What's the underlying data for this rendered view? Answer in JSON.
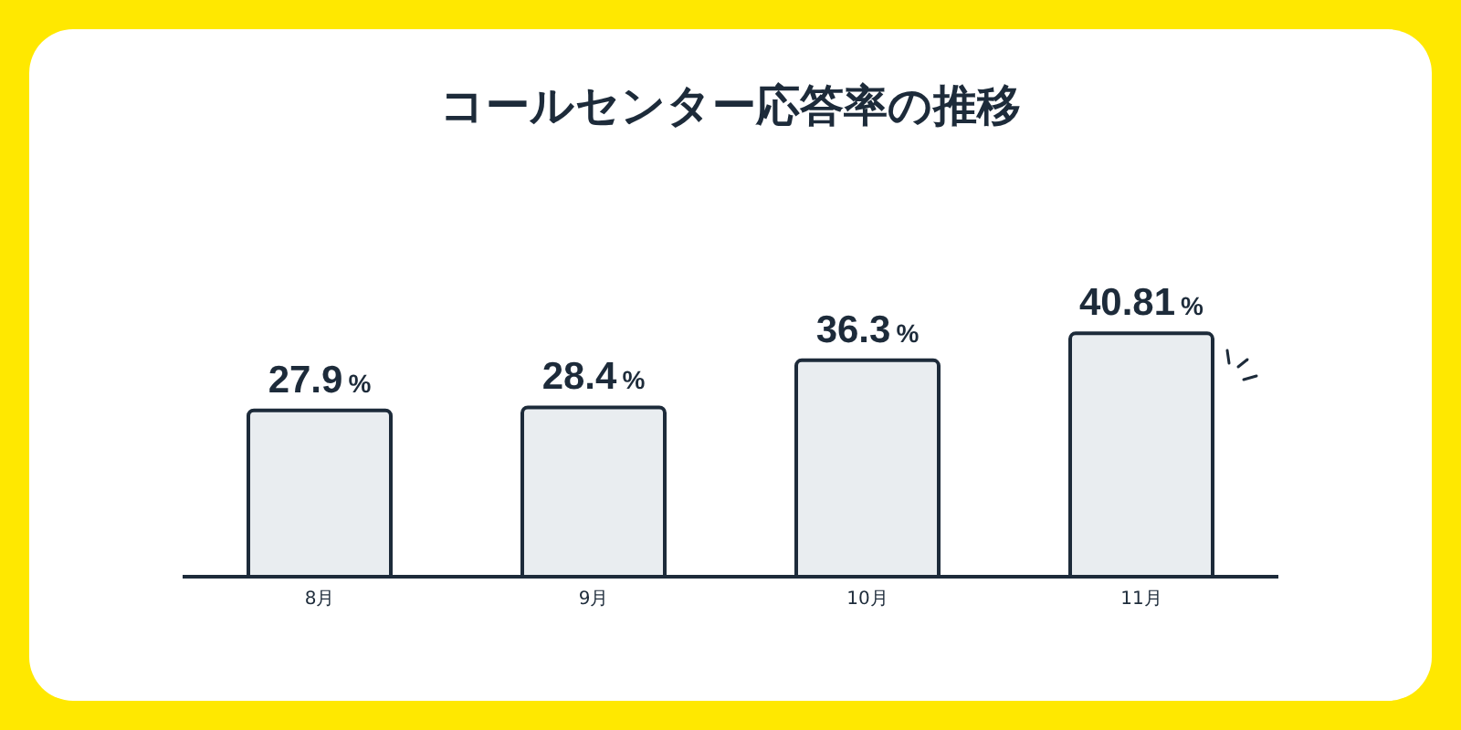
{
  "chart_data": {
    "type": "bar",
    "title": "コールセンター応答率の推移",
    "categories": [
      "8月",
      "9月",
      "10月",
      "11月"
    ],
    "values": [
      27.9,
      28.4,
      36.3,
      40.81
    ],
    "value_labels": [
      "27.9%",
      "28.4%",
      "36.3%",
      "40.81%"
    ],
    "color": "#e9edf0",
    "grid": false,
    "legend": false
  }
}
